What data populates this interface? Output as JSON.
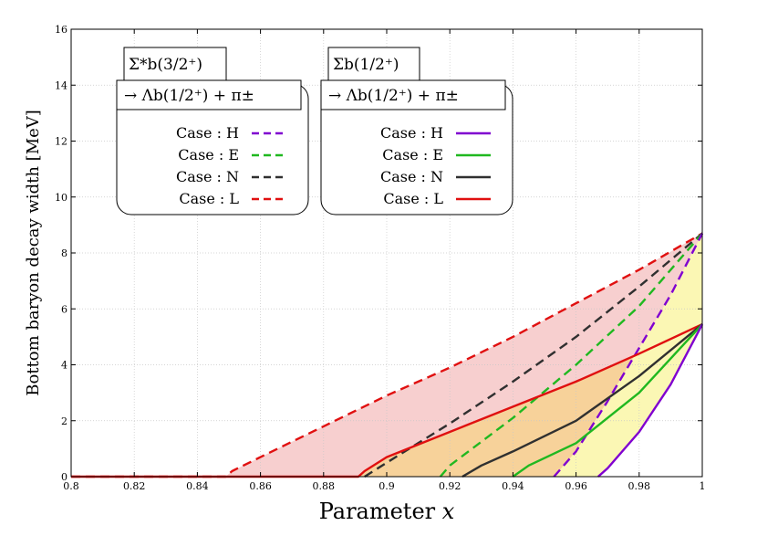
{
  "chart_data": {
    "type": "line",
    "xlabel": "Parameter ",
    "xlabel_var": "x",
    "ylabel": "Bottom baryon decay width [MeV]",
    "xlim": [
      0.8,
      1.0
    ],
    "ylim": [
      0,
      16
    ],
    "x_ticks": [
      "0.8",
      "0.82",
      "0.84",
      "0.86",
      "0.88",
      "0.9",
      "0.92",
      "0.94",
      "0.96",
      "0.98",
      "1"
    ],
    "y_ticks": [
      "0",
      "2",
      "4",
      "6",
      "8",
      "10",
      "12",
      "14",
      "16"
    ],
    "grid": true,
    "colors": {
      "H": "#8000d0",
      "E": "#20b820",
      "N": "#303030",
      "L": "#e01010"
    },
    "shading": {
      "red": "#f7cfcf",
      "orange": "#f7d29a",
      "yellow": "#fbf7b4"
    },
    "legends": [
      {
        "title_line1": "Σ*b(3/2⁺)",
        "title_line2": "→ Λb(1/2⁺) + π±",
        "style": "dashed",
        "entries": [
          "Case : H",
          "Case : E",
          "Case : N",
          "Case : L"
        ],
        "placement": "top-left"
      },
      {
        "title_line1": "Σb(1/2⁺)",
        "title_line2": "→ Λb(1/2⁺) + π±",
        "style": "solid",
        "entries": [
          "Case : H",
          "Case : E",
          "Case : N",
          "Case : L"
        ],
        "placement": "top-center"
      }
    ],
    "series": [
      {
        "name": "Case : L",
        "group": "Σ*b",
        "style": "dashed",
        "color_key": "L",
        "x": [
          0.8,
          0.849,
          0.851,
          0.86,
          0.88,
          0.9,
          0.92,
          0.94,
          0.96,
          0.98,
          1.0
        ],
        "values": [
          0,
          0,
          0.2,
          0.7,
          1.8,
          2.9,
          3.9,
          5.0,
          6.2,
          7.4,
          8.7
        ]
      },
      {
        "name": "Case : N",
        "group": "Σ*b",
        "style": "dashed",
        "color_key": "N",
        "x": [
          0.893,
          0.9,
          0.92,
          0.94,
          0.96,
          0.98,
          1.0
        ],
        "values": [
          0,
          0.5,
          1.9,
          3.4,
          5.0,
          6.8,
          8.7
        ]
      },
      {
        "name": "Case : E",
        "group": "Σ*b",
        "style": "dashed",
        "color_key": "E",
        "x": [
          0.917,
          0.92,
          0.94,
          0.96,
          0.98,
          1.0
        ],
        "values": [
          0,
          0.4,
          2.1,
          4.0,
          6.1,
          8.7
        ]
      },
      {
        "name": "Case : H",
        "group": "Σ*b",
        "style": "dashed",
        "color_key": "H",
        "x": [
          0.953,
          0.96,
          0.97,
          0.98,
          0.99,
          1.0
        ],
        "values": [
          0,
          0.9,
          2.7,
          4.6,
          6.5,
          8.7
        ]
      },
      {
        "name": "Case : L",
        "group": "Σb",
        "style": "solid",
        "color_key": "L",
        "x": [
          0.8,
          0.891,
          0.893,
          0.9,
          0.92,
          0.94,
          0.96,
          0.98,
          1.0
        ],
        "values": [
          0,
          0,
          0.2,
          0.7,
          1.6,
          2.5,
          3.4,
          4.4,
          5.45
        ]
      },
      {
        "name": "Case : N",
        "group": "Σb",
        "style": "solid",
        "color_key": "N",
        "x": [
          0.924,
          0.93,
          0.94,
          0.96,
          0.98,
          1.0
        ],
        "values": [
          0,
          0.4,
          0.9,
          2.0,
          3.6,
          5.45
        ]
      },
      {
        "name": "Case : E",
        "group": "Σb",
        "style": "solid",
        "color_key": "E",
        "x": [
          0.94,
          0.945,
          0.96,
          0.98,
          1.0
        ],
        "values": [
          0,
          0.4,
          1.2,
          3.0,
          5.45
        ]
      },
      {
        "name": "Case : H",
        "group": "Σb",
        "style": "solid",
        "color_key": "H",
        "x": [
          0.967,
          0.97,
          0.98,
          0.99,
          1.0
        ],
        "values": [
          0,
          0.3,
          1.6,
          3.3,
          5.45
        ]
      }
    ]
  }
}
